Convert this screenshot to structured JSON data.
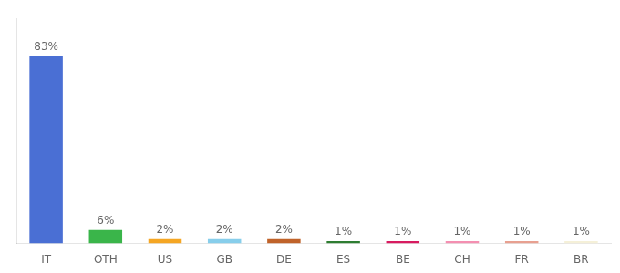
{
  "chart_data": {
    "type": "bar",
    "categories": [
      "IT",
      "OTH",
      "US",
      "GB",
      "DE",
      "ES",
      "BE",
      "CH",
      "FR",
      "BR"
    ],
    "values": [
      83,
      6,
      2,
      2,
      2,
      1,
      1,
      1,
      1,
      1
    ],
    "value_labels": [
      "83%",
      "6%",
      "2%",
      "2%",
      "2%",
      "1%",
      "1%",
      "1%",
      "1%",
      "1%"
    ],
    "data_labels": true,
    "colors": [
      "#4a6fd4",
      "#3ab54a",
      "#f5a623",
      "#87ceeb",
      "#c0632a",
      "#2e7d32",
      "#d81b60",
      "#f48fb1",
      "#e8a090",
      "#f5f0d8"
    ],
    "ylim": [
      0,
      100
    ],
    "tick_labels": "x",
    "grid": false
  }
}
